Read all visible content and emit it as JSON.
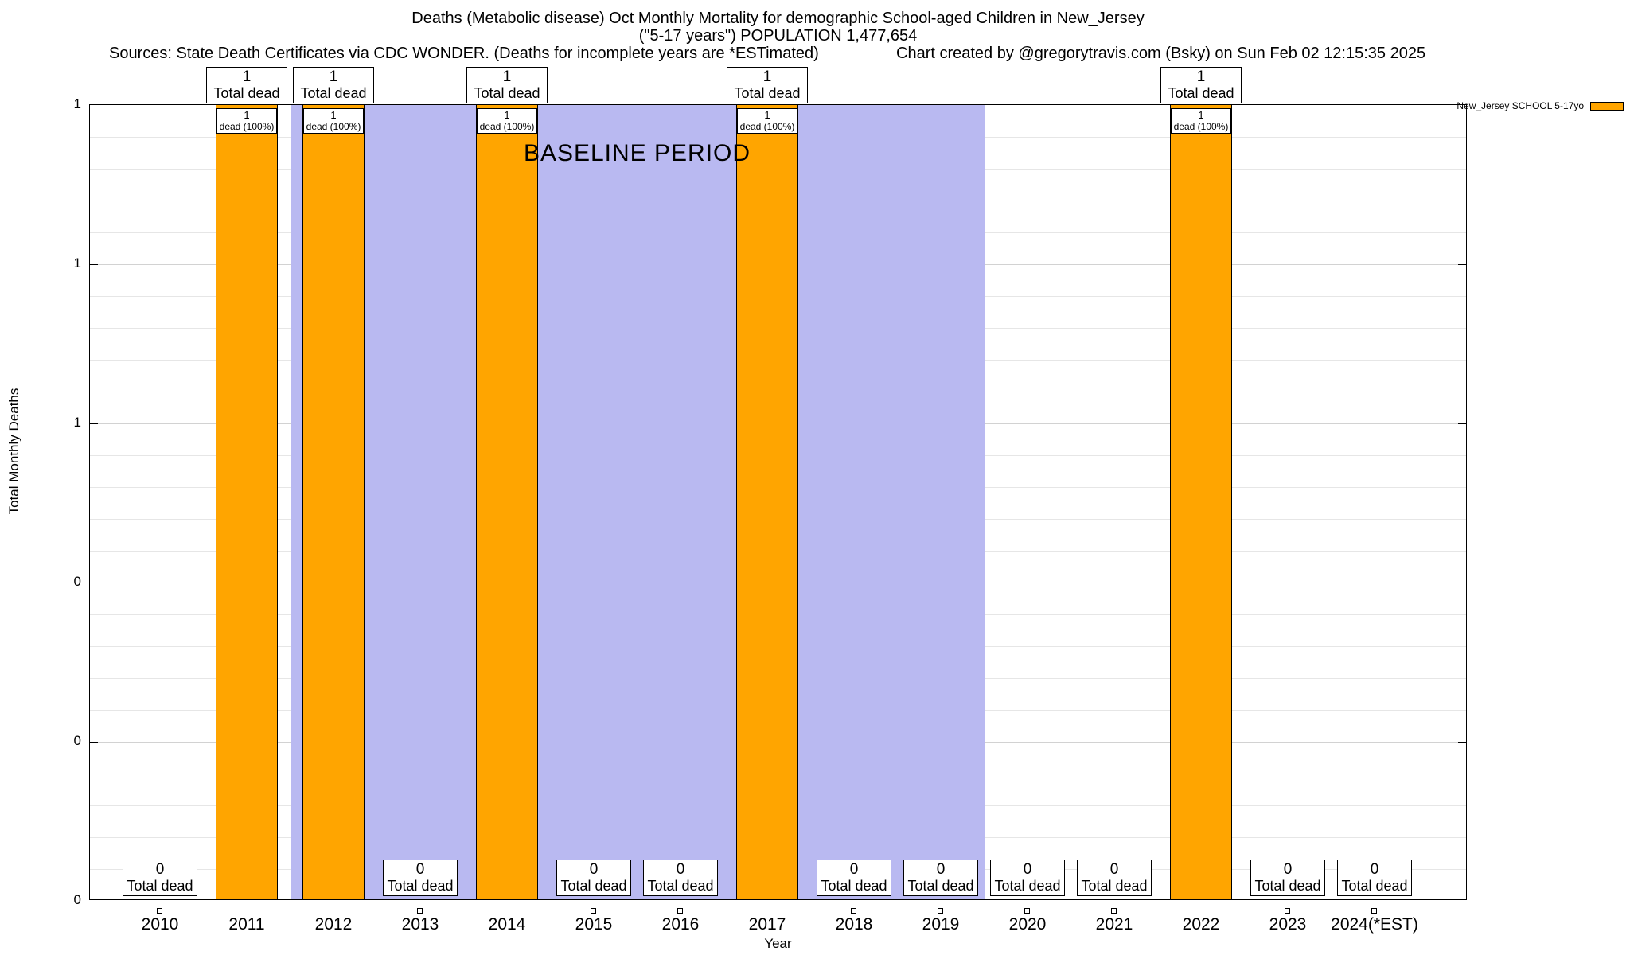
{
  "header": {
    "title": "Deaths (Metabolic disease) Oct Monthly Mortality for demographic School-aged Children in New_Jersey",
    "subtitle": "(\"5-17 years\") POPULATION 1,477,654",
    "sources": "Sources: State Death Certificates via CDC WONDER. (Deaths for incomplete years are *ESTimated)",
    "credit": "Chart created by @gregorytravis.com (Bsky) on Sun Feb 02 12:15:35 2025"
  },
  "legend": {
    "label": "New_Jersey SCHOOL 5-17yo",
    "swatch_color": "#FFA500",
    "position": "top-right"
  },
  "chart_data": {
    "type": "bar",
    "title": "Deaths (Metabolic disease) Oct Monthly Mortality for demographic School-aged Children in New_Jersey",
    "subtitle": "(\"5-17 years\") POPULATION 1,477,654",
    "xlabel": "Year",
    "ylabel": "Total Monthly Deaths",
    "ylim": [
      0,
      1
    ],
    "grid": true,
    "categories": [
      "2010",
      "2011",
      "2012",
      "2013",
      "2014",
      "2015",
      "2016",
      "2017",
      "2018",
      "2019",
      "2020",
      "2021",
      "2022",
      "2023",
      "2024(*EST)"
    ],
    "values": [
      0,
      1,
      1,
      0,
      1,
      0,
      0,
      1,
      0,
      0,
      0,
      0,
      1,
      0,
      0
    ],
    "bar_color": "#FFA500",
    "ytick_labels_bottom_to_top": [
      "0",
      "0",
      "0",
      "1",
      "1",
      "1"
    ],
    "bar_annotations": {
      "total_label": "Total dead",
      "bar_inner_label": "dead (100%)"
    },
    "baseline_region": {
      "label": "BASELINE PERIOD",
      "from": "2012",
      "to": "2019",
      "color": "#B9B9F1"
    }
  }
}
